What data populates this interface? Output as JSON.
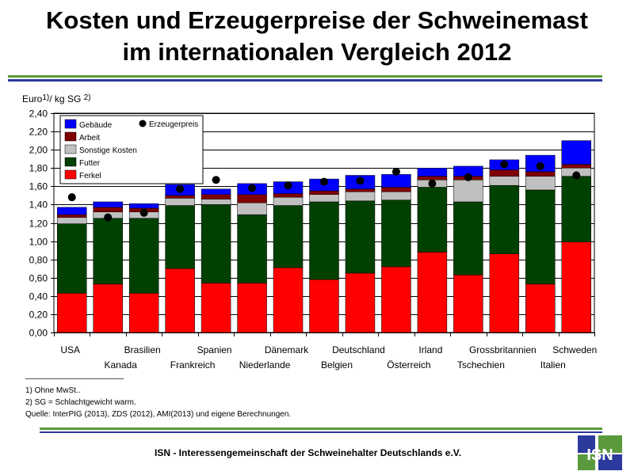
{
  "title_line1": "Kosten und Erzeugerpreise der Schweinemast",
  "title_line2": "im internationalen Vergleich 2012",
  "unit_main": "Euro",
  "unit_sup1": "1)",
  "unit_mid": "/ kg SG ",
  "unit_sup2": "2)",
  "footnotes": [
    "1) Ohne MwSt..",
    "2) SG = Schlachtgewicht warm.",
    "Quelle: InterPIG (2013), ZDS (2012), AMI(2013) und eigene Berechnungen."
  ],
  "footer": "ISN - Interessengemeinschaft der Schweinehalter Deutschlands e.V.",
  "logo_text": "ISN",
  "colors": {
    "gebaeude": "#0000ff",
    "arbeit": "#800000",
    "sonstige": "#c0c0c0",
    "futter": "#004000",
    "ferkel": "#ff0000",
    "price": "#000000",
    "rule_green": "#5a9a3c",
    "rule_blue": "#2b3a9c"
  },
  "chart_data": {
    "type": "bar",
    "stacked": true,
    "categories": [
      "USA",
      "Kanada",
      "Brasilien",
      "Frankreich",
      "Spanien",
      "Niederlande",
      "Dänemark",
      "Belgien",
      "Deutschland",
      "Österreich",
      "Irland",
      "Tschechien",
      "Grossbritannien",
      "Italien",
      "Schweden"
    ],
    "series": [
      {
        "name": "Ferkel",
        "color": "#ff0000",
        "values": [
          0.43,
          0.53,
          0.43,
          0.7,
          0.54,
          0.54,
          0.71,
          0.58,
          0.65,
          0.72,
          0.88,
          0.63,
          0.86,
          0.53,
          0.99
        ]
      },
      {
        "name": "Futter",
        "color": "#004000",
        "values": [
          0.76,
          0.72,
          0.82,
          0.69,
          0.86,
          0.75,
          0.68,
          0.85,
          0.79,
          0.73,
          0.71,
          0.8,
          0.75,
          1.03,
          0.72
        ]
      },
      {
        "name": "Sonstige Kosten",
        "color": "#c0c0c0",
        "values": [
          0.07,
          0.07,
          0.07,
          0.08,
          0.06,
          0.13,
          0.09,
          0.08,
          0.1,
          0.09,
          0.08,
          0.24,
          0.1,
          0.15,
          0.09
        ]
      },
      {
        "name": "Arbeit",
        "color": "#800000",
        "values": [
          0.03,
          0.05,
          0.04,
          0.03,
          0.05,
          0.09,
          0.04,
          0.04,
          0.03,
          0.05,
          0.04,
          0.04,
          0.07,
          0.05,
          0.04
        ]
      },
      {
        "name": "Gebäude",
        "color": "#0000ff",
        "values": [
          0.08,
          0.06,
          0.05,
          0.12,
          0.06,
          0.12,
          0.13,
          0.13,
          0.15,
          0.14,
          0.09,
          0.11,
          0.11,
          0.18,
          0.26
        ]
      }
    ],
    "price_series": {
      "name": "Erzeugerpreis",
      "values": [
        1.48,
        1.26,
        1.31,
        1.57,
        1.67,
        1.58,
        1.61,
        1.65,
        1.66,
        1.76,
        1.63,
        1.7,
        1.84,
        1.82,
        1.72
      ]
    },
    "ylim": [
      0,
      2.4
    ],
    "yticks": [
      "0,00",
      "0,20",
      "0,40",
      "0,60",
      "0,80",
      "1,00",
      "1,20",
      "1,40",
      "1,60",
      "1,80",
      "2,00",
      "2,20",
      "2,40"
    ],
    "ylabel": "Euro1)/ kg SG 2)",
    "grid": true,
    "legend_position": "top-left"
  }
}
